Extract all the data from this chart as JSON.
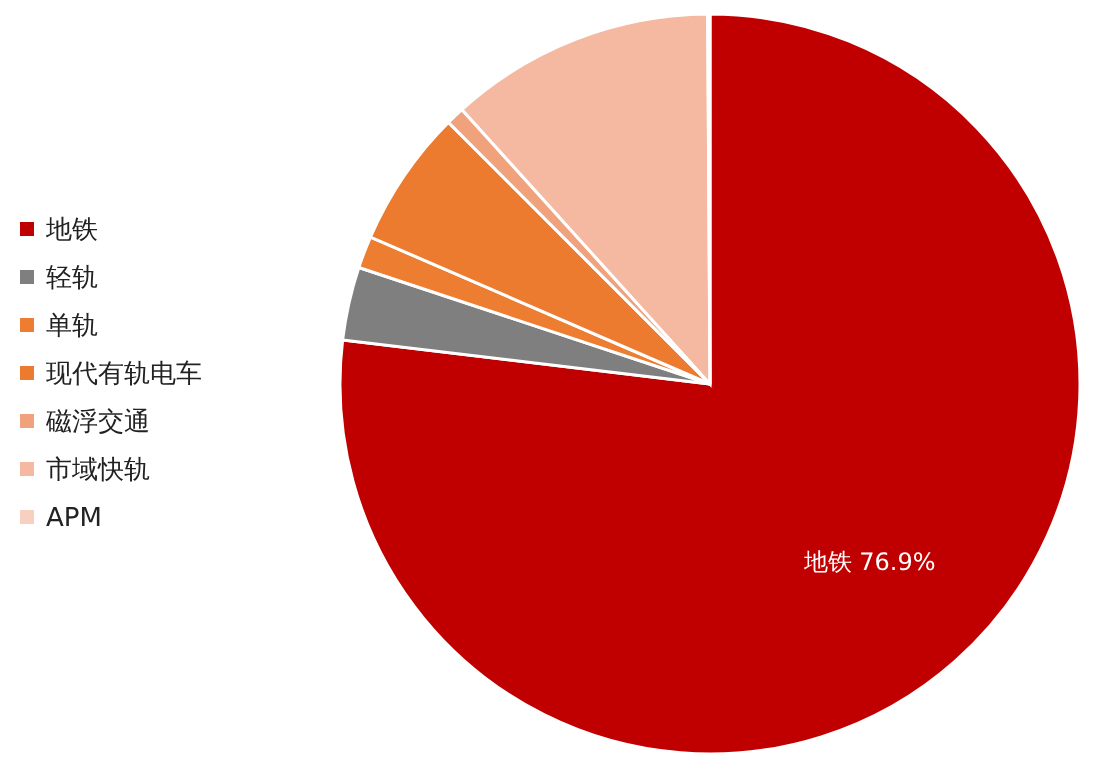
{
  "chart_data": {
    "type": "pie",
    "categories": [
      "地铁",
      "轻轨",
      "单轨",
      "现代有轨电车",
      "磁浮交通",
      "市域快轨",
      "APM"
    ],
    "values": [
      76.9,
      3.2,
      1.4,
      6.0,
      0.8,
      11.6,
      0.1
    ],
    "colors": [
      "#c00000",
      "#7f7f7f",
      "#ed7d31",
      "#ec7a2f",
      "#f0a27c",
      "#f4b9a0",
      "#f8d0c0"
    ],
    "value_labels": [
      "76.9%",
      null,
      null,
      null,
      null,
      null,
      null
    ],
    "legend": "left"
  }
}
